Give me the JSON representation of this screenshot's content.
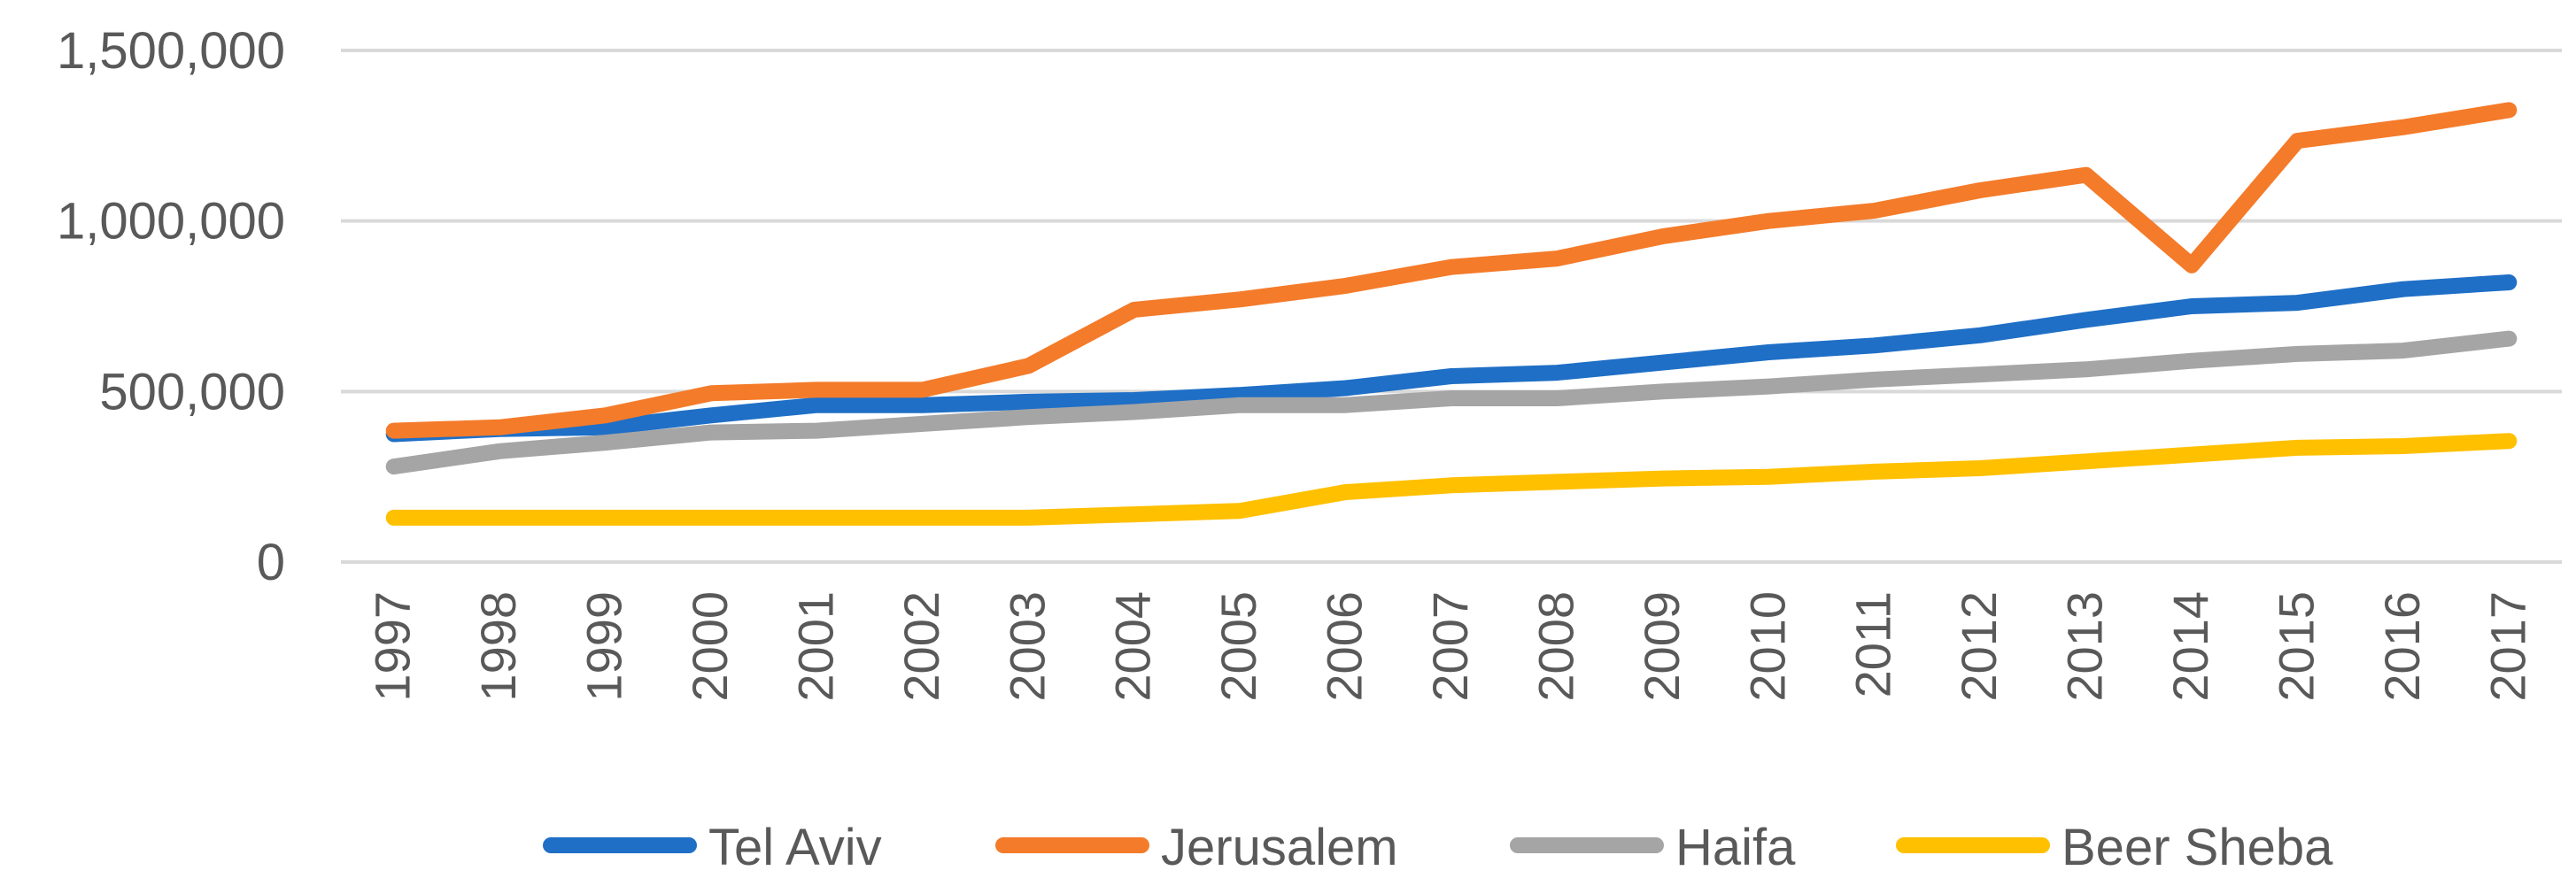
{
  "chart_data": {
    "type": "line",
    "title": "",
    "xlabel": "",
    "ylabel": "",
    "ylim": [
      0,
      1500000
    ],
    "yticks": [
      {
        "value": 0,
        "label": "0"
      },
      {
        "value": 500000,
        "label": "500,000"
      },
      {
        "value": 1000000,
        "label": "1,000,000"
      },
      {
        "value": 1500000,
        "label": "1,500,000"
      }
    ],
    "grid": true,
    "legend_position": "bottom",
    "categories": [
      "1997",
      "1998",
      "1999",
      "2000",
      "2001",
      "2002",
      "2003",
      "2004",
      "2005",
      "2006",
      "2007",
      "2008",
      "2009",
      "2010",
      "2011",
      "2012",
      "2013",
      "2014",
      "2015",
      "2016",
      "2017"
    ],
    "series": [
      {
        "name": "Tel Aviv",
        "color": "#1f6fc6",
        "values": [
          375000,
          390000,
          395000,
          430000,
          460000,
          460000,
          470000,
          475000,
          490000,
          510000,
          545000,
          555000,
          585000,
          615000,
          635000,
          665000,
          710000,
          750000,
          760000,
          800000,
          820000
        ]
      },
      {
        "name": "Jerusalem",
        "color": "#f47b2a",
        "values": [
          385000,
          395000,
          430000,
          495000,
          505000,
          505000,
          575000,
          740000,
          770000,
          810000,
          865000,
          890000,
          955000,
          1000000,
          1030000,
          1090000,
          1135000,
          870000,
          1235000,
          1275000,
          1325000
        ]
      },
      {
        "name": "Haifa",
        "color": "#a5a5a5",
        "values": [
          280000,
          325000,
          350000,
          380000,
          385000,
          405000,
          425000,
          440000,
          460000,
          460000,
          480000,
          480000,
          500000,
          515000,
          535000,
          550000,
          565000,
          590000,
          610000,
          620000,
          655000
        ]
      },
      {
        "name": "Beer Sheba",
        "color": "#ffc000",
        "values": [
          130000,
          130000,
          130000,
          130000,
          130000,
          130000,
          130000,
          140000,
          150000,
          205000,
          225000,
          235000,
          245000,
          250000,
          265000,
          275000,
          295000,
          315000,
          335000,
          340000,
          355000
        ]
      }
    ]
  }
}
